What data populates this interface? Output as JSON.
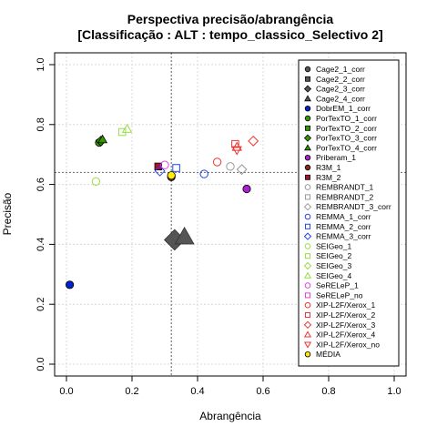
{
  "chart_data": {
    "type": "scatter",
    "title": "Perspectiva precisão/abrangência",
    "subtitle": "[Classificação : ALT : tempo_classico_Selectivo 2]",
    "xlabel": "Abrangência",
    "ylabel": "Precisão",
    "xlim": [
      0.0,
      1.0
    ],
    "ylim": [
      0.0,
      1.0
    ],
    "x_ticks": [
      "0.0",
      "0.2",
      "0.4",
      "0.6",
      "0.8",
      "1.0"
    ],
    "y_ticks": [
      "0.0",
      "0.2",
      "0.4",
      "0.6",
      "0.8",
      "1.0"
    ],
    "grid": true,
    "reference_lines": {
      "x": 0.32,
      "y": 0.64
    },
    "legend_position": "top-right",
    "series": [
      {
        "name": "Cage2_1_corr",
        "color": "#555555",
        "shape": "circle",
        "fill": true,
        "x": null,
        "y": null
      },
      {
        "name": "Cage2_2_corr",
        "color": "#555555",
        "shape": "square",
        "fill": true,
        "x": null,
        "y": null
      },
      {
        "name": "Cage2_3_corr",
        "color": "#555555",
        "shape": "diamond",
        "fill": true,
        "x": 0.33,
        "y": 0.415
      },
      {
        "name": "Cage2_4_corr",
        "color": "#555555",
        "shape": "triangle",
        "fill": true,
        "x": 0.36,
        "y": 0.425
      },
      {
        "name": "DobrEM_1_corr",
        "color": "#0022cc",
        "shape": "circle",
        "fill": true,
        "x": 0.01,
        "y": 0.265
      },
      {
        "name": "PorTexTO_1_corr",
        "color": "#339900",
        "shape": "circle",
        "fill": true,
        "x": 0.1,
        "y": 0.74
      },
      {
        "name": "PorTexTO_2_corr",
        "color": "#339900",
        "shape": "square",
        "fill": true,
        "x": null,
        "y": null
      },
      {
        "name": "PorTexTO_3_corr",
        "color": "#339900",
        "shape": "diamond",
        "fill": true,
        "x": 0.105,
        "y": 0.745
      },
      {
        "name": "PorTexTO_4_corr",
        "color": "#339900",
        "shape": "triangle",
        "fill": true,
        "x": 0.11,
        "y": 0.75
      },
      {
        "name": "Priberam_1",
        "color": "#aa22cc",
        "shape": "circle",
        "fill": true,
        "x": 0.55,
        "y": 0.585
      },
      {
        "name": "R3M_1",
        "color": "#8b2a1a",
        "shape": "circle",
        "fill": true,
        "x": 0.32,
        "y": 0.625
      },
      {
        "name": "R3M_2",
        "color": "#aa1133",
        "shape": "square",
        "fill": true,
        "x": 0.28,
        "y": 0.66
      },
      {
        "name": "REMBRANDT_1",
        "color": "#999999",
        "shape": "circle",
        "fill": false,
        "x": 0.5,
        "y": 0.66
      },
      {
        "name": "REMBRANDT_2",
        "color": "#999999",
        "shape": "square",
        "fill": false,
        "x": null,
        "y": null
      },
      {
        "name": "REMBRANDT_3_corr",
        "color": "#999999",
        "shape": "diamond",
        "fill": false,
        "x": 0.535,
        "y": 0.65
      },
      {
        "name": "REMMA_1_corr",
        "color": "#2244ee",
        "shape": "circle",
        "fill": false,
        "x": 0.42,
        "y": 0.635
      },
      {
        "name": "REMMA_2_corr",
        "color": "#2244ee",
        "shape": "square",
        "fill": false,
        "x": 0.335,
        "y": 0.655
      },
      {
        "name": "REMMA_3_corr",
        "color": "#2244ee",
        "shape": "diamond",
        "fill": false,
        "x": 0.285,
        "y": 0.645
      },
      {
        "name": "SEIGeo_1",
        "color": "#99dd44",
        "shape": "circle",
        "fill": false,
        "x": 0.09,
        "y": 0.61
      },
      {
        "name": "SEIGeo_2",
        "color": "#99dd44",
        "shape": "square",
        "fill": false,
        "x": 0.17,
        "y": 0.775
      },
      {
        "name": "SEIGeo_3",
        "color": "#99dd44",
        "shape": "diamond",
        "fill": false,
        "x": null,
        "y": null
      },
      {
        "name": "SEIGeo_4",
        "color": "#99dd44",
        "shape": "triangle",
        "fill": false,
        "x": 0.185,
        "y": 0.785
      },
      {
        "name": "SeRELeP_1",
        "color": "#dd44dd",
        "shape": "circle",
        "fill": false,
        "x": 0.3,
        "y": 0.665
      },
      {
        "name": "SeRELeP_no",
        "color": "#dd44dd",
        "shape": "square",
        "fill": false,
        "x": null,
        "y": null
      },
      {
        "name": "XIP-L2F/Xerox_1",
        "color": "#ee3333",
        "shape": "circle",
        "fill": false,
        "x": 0.46,
        "y": 0.675
      },
      {
        "name": "XIP-L2F/Xerox_2",
        "color": "#ee3333",
        "shape": "square",
        "fill": false,
        "x": 0.515,
        "y": 0.735
      },
      {
        "name": "XIP-L2F/Xerox_3",
        "color": "#ee3333",
        "shape": "diamond",
        "fill": false,
        "x": 0.57,
        "y": 0.745
      },
      {
        "name": "XIP-L2F/Xerox_4",
        "color": "#ee3333",
        "shape": "triangle",
        "fill": false,
        "x": 0.52,
        "y": 0.725
      },
      {
        "name": "XIP-L2F/Xerox_no",
        "color": "#ee3333",
        "shape": "triangle-down",
        "fill": false,
        "x": 0.52,
        "y": 0.715
      },
      {
        "name": "MÉDIA",
        "color": "#ffee00",
        "shape": "circle",
        "fill": true,
        "x": 0.32,
        "y": 0.63
      }
    ]
  }
}
